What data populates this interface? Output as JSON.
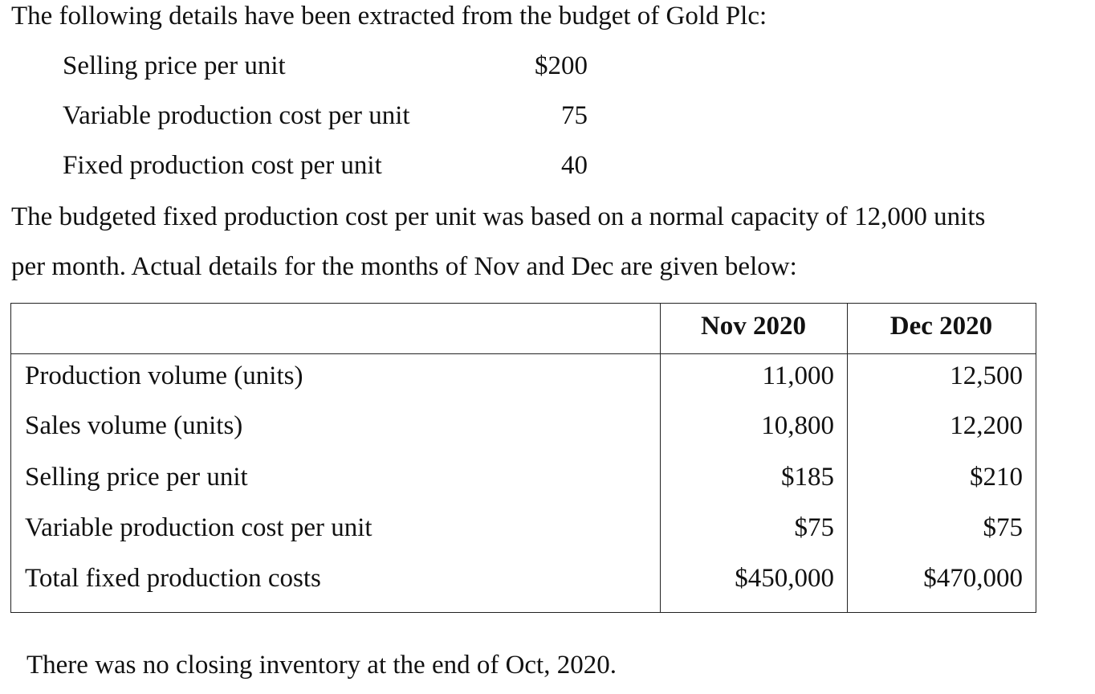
{
  "intro": "The following details have been extracted from the budget of Gold Plc:",
  "budget_items": [
    {
      "label": "Selling price per unit",
      "value": "$200"
    },
    {
      "label": "Variable production cost per unit",
      "value": "75"
    },
    {
      "label": "Fixed production cost per unit",
      "value": "40"
    }
  ],
  "paragraph_line1": "The budgeted fixed production cost per unit was based on a normal capacity of 12,000 units",
  "paragraph_line2": "per month. Actual details for the months of Nov and Dec are given below:",
  "table": {
    "headers": [
      "",
      "Nov 2020",
      "Dec 2020"
    ],
    "rows": [
      {
        "label": "Production volume (units)",
        "nov": "11,000",
        "dec": "12,500"
      },
      {
        "label": "Sales volume (units)",
        "nov": "10,800",
        "dec": "12,200"
      },
      {
        "label": "Selling price per unit",
        "nov": "$185",
        "dec": "$210"
      },
      {
        "label": "Variable production cost per unit",
        "nov": "$75",
        "dec": "$75"
      },
      {
        "label": "Total fixed production costs",
        "nov": "$450,000",
        "dec": "$470,000"
      }
    ]
  },
  "footer": "There was no closing inventory at the end of Oct, 2020."
}
